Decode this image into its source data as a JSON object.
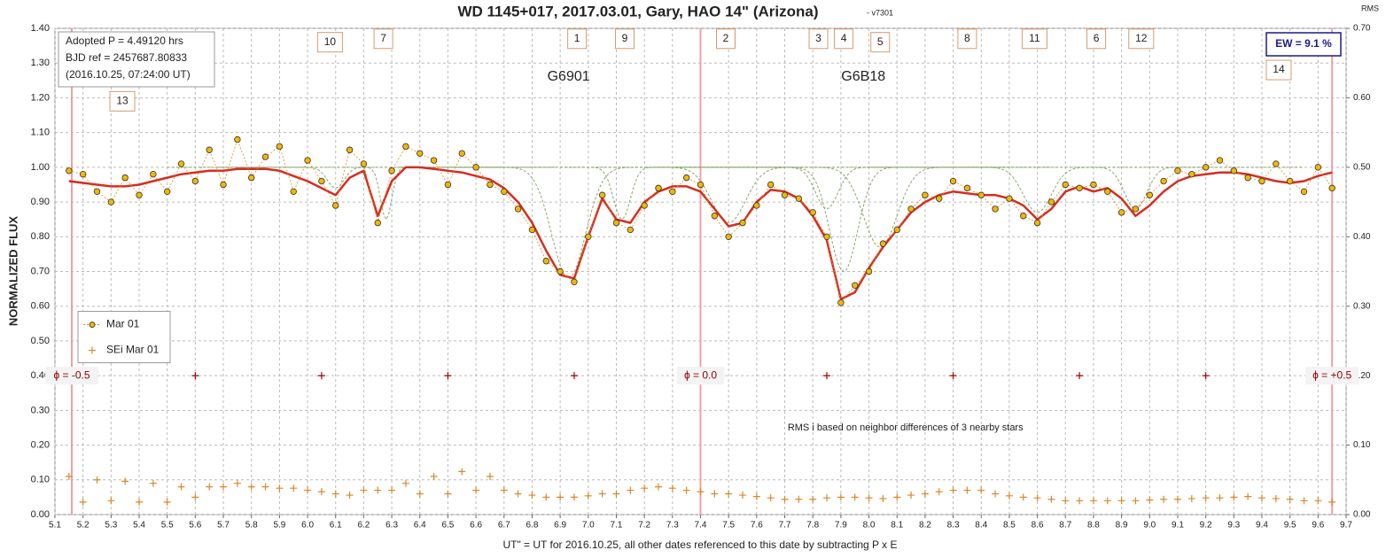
{
  "chart_data": {
    "type": "line",
    "title": "WD 1145+017, 2017.03.01, Gary, HAO 14\" (Arizona)",
    "subtitle": " - v7301",
    "ylabel": "NORMALIZED FLUX",
    "y2label": "RMS",
    "xlabel": "UT\" = UT for 2016.10.25, all other dates referenced to this date by subtracting P x E",
    "info": [
      "Adopted P = 4.49120  hrs",
      "BJD ref = 2457687.80833",
      "(2016.10.25,  07:24:00  UT)"
    ],
    "ew_label": "EW = 9.1 %",
    "note": {
      "text": "RMS i based on neighbor differences of 3 nearby stars",
      "x": 8.13,
      "y": 0.25
    },
    "xlim": [
      5.1,
      9.7
    ],
    "ylim": [
      0,
      1.4
    ],
    "y2lim": [
      0,
      0.7
    ],
    "grid": true,
    "legend": "left",
    "xticks": [
      5.1,
      5.2,
      5.3,
      5.4,
      5.5,
      5.6,
      5.7,
      5.8,
      5.9,
      {
        "value": 6,
        "label": "6.0"
      },
      6.1,
      6.2,
      6.3,
      6.4,
      6.5,
      6.6,
      6.7,
      6.8,
      6.9,
      {
        "value": 7,
        "label": "7.0"
      },
      7.1,
      7.2,
      7.3,
      7.4,
      7.5,
      7.6,
      7.7,
      7.8,
      7.9,
      {
        "value": 8,
        "label": "8.0"
      },
      8.1,
      8.2,
      8.3,
      8.4,
      8.5,
      8.6,
      8.7,
      8.8,
      8.9,
      {
        "value": 9,
        "label": "9.0"
      },
      9.1,
      9.2,
      9.3,
      9.4,
      9.5,
      9.6,
      9.7
    ],
    "yticks": [
      {
        "value": 0,
        "label": "0.00"
      },
      {
        "value": 0.1,
        "label": "0.10"
      },
      {
        "value": 0.2,
        "label": "0.20"
      },
      {
        "value": 0.3,
        "label": "0.30"
      },
      {
        "value": 0.4,
        "label": "0.40"
      },
      {
        "value": 0.5,
        "label": "0.50"
      },
      {
        "value": 0.6,
        "label": "0.60"
      },
      {
        "value": 0.7,
        "label": "0.70"
      },
      {
        "value": 0.8,
        "label": "0.80"
      },
      {
        "value": 0.9,
        "label": "0.90"
      },
      {
        "value": 1,
        "label": "1.00"
      },
      {
        "value": 1.1,
        "label": "1.10"
      },
      {
        "value": 1.2,
        "label": "1.20"
      },
      {
        "value": 1.3,
        "label": "1.30"
      },
      {
        "value": 1.4,
        "label": "1.40"
      }
    ],
    "y2ticks": [
      {
        "value": 0,
        "label": "0.00"
      },
      {
        "value": 0.1,
        "label": "0.10"
      },
      {
        "value": 0.2,
        "label": "0.20"
      },
      {
        "value": 0.3,
        "label": "0.30"
      },
      {
        "value": 0.4,
        "label": "0.40"
      },
      {
        "value": 0.5,
        "label": "0.50"
      },
      {
        "value": 0.6,
        "label": "0.60"
      },
      {
        "value": 0.7,
        "label": "0.70"
      }
    ],
    "x": [
      5.15,
      5.2,
      5.25,
      5.3,
      5.35,
      5.4,
      5.45,
      5.5,
      5.55,
      5.6,
      5.65,
      5.7,
      5.75,
      5.8,
      5.85,
      5.9,
      5.95,
      6,
      6.05,
      6.1,
      6.15,
      6.2,
      6.25,
      6.3,
      6.35,
      6.4,
      6.45,
      6.5,
      6.55,
      6.6,
      6.65,
      6.7,
      6.75,
      6.8,
      6.85,
      6.9,
      6.95,
      7,
      7.05,
      7.1,
      7.15,
      7.2,
      7.25,
      7.3,
      7.35,
      7.4,
      7.45,
      7.5,
      7.55,
      7.6,
      7.65,
      7.7,
      7.75,
      7.8,
      7.85,
      7.9,
      7.95,
      8,
      8.05,
      8.1,
      8.15,
      8.2,
      8.25,
      8.3,
      8.35,
      8.4,
      8.45,
      8.5,
      8.55,
      8.6,
      8.65,
      8.7,
      8.75,
      8.8,
      8.85,
      8.9,
      8.95,
      9,
      9.05,
      9.1,
      9.15,
      9.2,
      9.25,
      9.3,
      9.35,
      9.4,
      9.45,
      9.5,
      9.55,
      9.6,
      9.65
    ],
    "series": [
      {
        "name": "Mar 01",
        "color": "#f2b705",
        "line_color": "#e08a1e",
        "style": "points",
        "values": [
          0.99,
          0.98,
          0.93,
          0.9,
          0.97,
          0.92,
          0.98,
          0.93,
          1.01,
          0.96,
          1.05,
          0.95,
          1.08,
          0.97,
          1.03,
          1.06,
          0.93,
          1.02,
          0.96,
          0.89,
          1.05,
          1.01,
          0.84,
          0.99,
          1.06,
          1.04,
          1.02,
          0.95,
          1.04,
          1.0,
          0.95,
          0.93,
          0.88,
          0.82,
          0.73,
          0.7,
          0.67,
          0.8,
          0.92,
          0.84,
          0.82,
          0.89,
          0.94,
          0.93,
          0.97,
          0.95,
          0.86,
          0.8,
          0.84,
          0.89,
          0.95,
          0.92,
          0.91,
          0.87,
          0.8,
          0.61,
          0.66,
          0.7,
          0.78,
          0.82,
          0.88,
          0.92,
          0.91,
          0.96,
          0.94,
          0.92,
          0.88,
          0.91,
          0.86,
          0.84,
          0.9,
          0.95,
          0.94,
          0.95,
          0.93,
          0.87,
          0.88,
          0.92,
          0.96,
          0.99,
          0.98,
          1.0,
          1.02,
          0.99,
          0.97,
          0.96,
          1.01,
          0.96,
          0.93,
          1.0,
          0.94
        ]
      },
      {
        "name": "SEi Mar 01",
        "color": "#d9892c",
        "style": "plus",
        "axis": "y2",
        "values": [
          0.055,
          0.018,
          0.05,
          0.02,
          0.048,
          0.018,
          0.045,
          0.018,
          0.04,
          0.025,
          0.04,
          0.04,
          0.045,
          0.04,
          0.04,
          0.038,
          0.038,
          0.035,
          0.033,
          0.03,
          0.028,
          0.035,
          0.035,
          0.035,
          0.045,
          0.03,
          0.055,
          0.03,
          0.062,
          0.035,
          0.055,
          0.035,
          0.03,
          0.028,
          0.025,
          0.025,
          0.025,
          0.027,
          0.03,
          0.03,
          0.035,
          0.038,
          0.04,
          0.038,
          0.035,
          0.033,
          0.03,
          0.03,
          0.028,
          0.026,
          0.024,
          0.022,
          0.022,
          0.022,
          0.024,
          0.025,
          0.025,
          0.024,
          0.023,
          0.025,
          0.028,
          0.03,
          0.033,
          0.035,
          0.035,
          0.035,
          0.03,
          0.027,
          0.025,
          0.024,
          0.022,
          0.02,
          0.02,
          0.02,
          0.02,
          0.02,
          0.02,
          0.021,
          0.022,
          0.022,
          0.023,
          0.024,
          0.024,
          0.025,
          0.026,
          0.024,
          0.023,
          0.022,
          0.02,
          0.02,
          0.018
        ]
      },
      {
        "color": "#d62d20",
        "style": "fit",
        "values": [
          0.96,
          0.955,
          0.95,
          0.945,
          0.945,
          0.95,
          0.96,
          0.97,
          0.98,
          0.985,
          0.99,
          0.99,
          0.995,
          0.995,
          0.995,
          0.99,
          0.975,
          0.96,
          0.94,
          0.92,
          0.97,
          0.99,
          0.86,
          0.96,
          1.0,
          1.0,
          0.995,
          0.99,
          0.985,
          0.975,
          0.965,
          0.94,
          0.9,
          0.84,
          0.76,
          0.69,
          0.68,
          0.8,
          0.91,
          0.85,
          0.84,
          0.9,
          0.93,
          0.945,
          0.945,
          0.93,
          0.88,
          0.83,
          0.84,
          0.9,
          0.935,
          0.93,
          0.91,
          0.86,
          0.79,
          0.62,
          0.64,
          0.71,
          0.77,
          0.82,
          0.87,
          0.9,
          0.92,
          0.93,
          0.925,
          0.92,
          0.92,
          0.91,
          0.89,
          0.85,
          0.88,
          0.93,
          0.945,
          0.93,
          0.94,
          0.91,
          0.86,
          0.89,
          0.93,
          0.96,
          0.975,
          0.98,
          0.985,
          0.985,
          0.98,
          0.97,
          0.96,
          0.955,
          0.96,
          0.975,
          0.985
        ]
      }
    ],
    "phase_markers": {
      "color": "#a00000",
      "y": 0.4,
      "x": [
        5.6,
        6.05,
        6.5,
        6.95,
        7.85,
        8.3,
        8.75,
        9.2
      ]
    },
    "dips": {
      "color": "#8aa86a",
      "baseline": 1.0,
      "items": [
        {
          "center": 6.1,
          "depth": 0.06,
          "width": 0.03
        },
        {
          "center": 6.28,
          "depth": 0.15,
          "width": 0.02
        },
        {
          "center": 6.93,
          "depth": 0.32,
          "width": 0.06
        },
        {
          "center": 7.12,
          "depth": 0.15,
          "width": 0.03
        },
        {
          "center": 7.5,
          "depth": 0.16,
          "width": 0.06
        },
        {
          "center": 7.85,
          "depth": 0.12,
          "width": 0.04
        },
        {
          "center": 7.91,
          "depth": 0.3,
          "width": 0.05
        },
        {
          "center": 8.04,
          "depth": 0.23,
          "width": 0.06
        },
        {
          "center": 8.6,
          "depth": 0.13,
          "width": 0.05
        },
        {
          "center": 8.95,
          "depth": 0.12,
          "width": 0.04
        }
      ]
    },
    "phase_lines": {
      "color": "#f0a0a0",
      "items": [
        {
          "x": 5.16,
          "label": "ϕ = -0.5"
        },
        {
          "x": 7.4,
          "label": "ϕ = 0.0"
        },
        {
          "x": 9.65,
          "label": "ϕ = +0.5"
        }
      ]
    },
    "annotations": [
      {
        "text": "10",
        "x": 6.08,
        "y": 1.36
      },
      {
        "text": "7",
        "x": 6.27,
        "y": 1.37
      },
      {
        "text": "1",
        "x": 6.96,
        "y": 1.37
      },
      {
        "text": "9",
        "x": 7.13,
        "y": 1.37
      },
      {
        "text": "2",
        "x": 7.49,
        "y": 1.37
      },
      {
        "text": "3",
        "x": 7.82,
        "y": 1.37
      },
      {
        "text": "4",
        "x": 7.91,
        "y": 1.37
      },
      {
        "text": "5",
        "x": 8.04,
        "y": 1.36
      },
      {
        "text": "8",
        "x": 8.35,
        "y": 1.37
      },
      {
        "text": "11",
        "x": 8.59,
        "y": 1.37
      },
      {
        "text": "6",
        "x": 8.81,
        "y": 1.37
      },
      {
        "text": "12",
        "x": 8.97,
        "y": 1.37
      },
      {
        "text": "14",
        "x": 9.46,
        "y": 1.28
      },
      {
        "text": "13",
        "x": 5.34,
        "y": 1.19
      }
    ],
    "labels": [
      {
        "text": "G6901",
        "x": 6.93,
        "y": 1.26
      },
      {
        "text": "G6B18",
        "x": 7.98,
        "y": 1.26
      }
    ]
  }
}
